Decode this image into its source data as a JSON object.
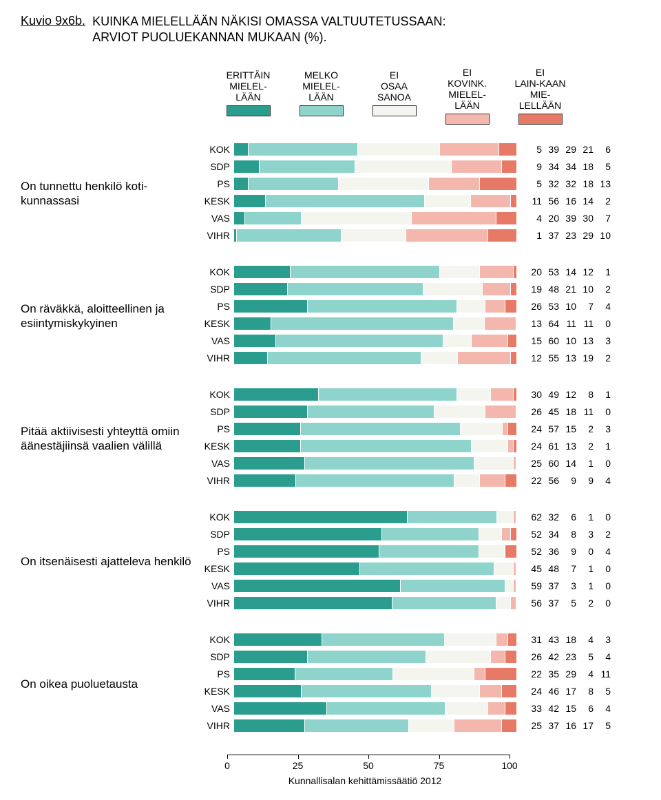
{
  "figure_label": "Kuvio 9x6b.",
  "title_line1": "KUINKA MIELELLÄÄN NÄKISI OMASSA VALTUUTETUSSAAN:",
  "title_line2": "ARVIOT PUOLUEKANNAN MUKAAN (%).",
  "footer": "Kunnallisalan kehittämissäätiö 2012",
  "legend": [
    {
      "label": "ERITTÄIN MIELEL-LÄÄN",
      "color": "#2a9d8f"
    },
    {
      "label": "MELKO MIELEL-LÄÄN",
      "color": "#8fd4cc"
    },
    {
      "label": "EI OSAA SANOA",
      "color": "#f5f5f0"
    },
    {
      "label": "EI KOVINK. MIELEL-LÄÄN",
      "color": "#f4b7ad"
    },
    {
      "label": "EI LAIN-KAAN MIE-LELLÄÄN",
      "color": "#e77a66"
    }
  ],
  "colors": [
    "#2a9d8f",
    "#8fd4cc",
    "#f5f5f0",
    "#f4b7ad",
    "#e77a66"
  ],
  "parties": [
    "KOK",
    "SDP",
    "PS",
    "KESK",
    "VAS",
    "VIHR"
  ],
  "x_ticks": [
    0,
    25,
    50,
    75,
    100
  ],
  "groups": [
    {
      "label": "On tunnettu henkilö koti-kunnassasi",
      "rows": [
        [
          5,
          39,
          29,
          21,
          6
        ],
        [
          9,
          34,
          34,
          18,
          5
        ],
        [
          5,
          32,
          32,
          18,
          13
        ],
        [
          11,
          56,
          16,
          14,
          2
        ],
        [
          4,
          20,
          39,
          30,
          7
        ],
        [
          1,
          37,
          23,
          29,
          10
        ]
      ]
    },
    {
      "label": "On räväkkä, aloitteellinen ja esiintymiskykyinen",
      "rows": [
        [
          20,
          53,
          14,
          12,
          1
        ],
        [
          19,
          48,
          21,
          10,
          2
        ],
        [
          26,
          53,
          10,
          7,
          4
        ],
        [
          13,
          64,
          11,
          11,
          0
        ],
        [
          15,
          60,
          10,
          13,
          3
        ],
        [
          12,
          55,
          13,
          19,
          2
        ]
      ]
    },
    {
      "label": "Pitää aktiivisesti yhteyttä omiin äänestäjiinsä vaalien välillä",
      "rows": [
        [
          30,
          49,
          12,
          8,
          1
        ],
        [
          26,
          45,
          18,
          11,
          0
        ],
        [
          24,
          57,
          15,
          2,
          3
        ],
        [
          24,
          61,
          13,
          2,
          1
        ],
        [
          25,
          60,
          14,
          1,
          0
        ],
        [
          22,
          56,
          9,
          9,
          4
        ]
      ]
    },
    {
      "label": "On itsenäisesti ajatteleva henkilö",
      "rows": [
        [
          62,
          32,
          6,
          1,
          0
        ],
        [
          52,
          34,
          8,
          3,
          2
        ],
        [
          52,
          36,
          9,
          0,
          4
        ],
        [
          45,
          48,
          7,
          1,
          0
        ],
        [
          59,
          37,
          3,
          1,
          0
        ],
        [
          56,
          37,
          5,
          2,
          0
        ]
      ]
    },
    {
      "label": "On oikea puoluetausta",
      "rows": [
        [
          31,
          43,
          18,
          4,
          3
        ],
        [
          26,
          42,
          23,
          5,
          4
        ],
        [
          22,
          35,
          29,
          4,
          11
        ],
        [
          24,
          46,
          17,
          8,
          5
        ],
        [
          33,
          42,
          15,
          6,
          4
        ],
        [
          25,
          37,
          16,
          17,
          5
        ]
      ]
    }
  ]
}
